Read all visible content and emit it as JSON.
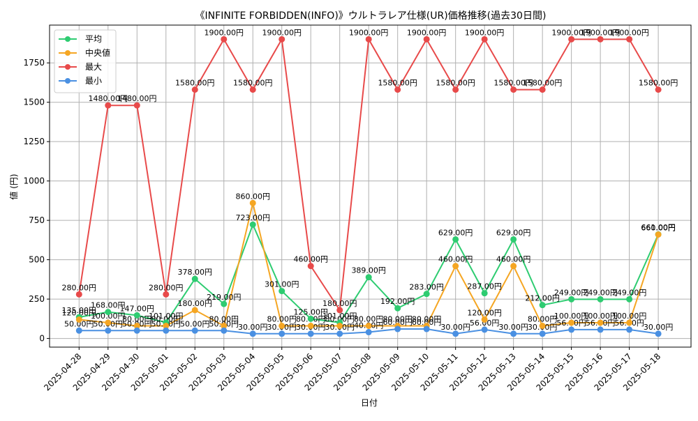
{
  "chart_data": {
    "type": "line",
    "title": "《INFINITE FORBIDDEN(INFO)》ウルトラレア仕様(UR)価格推移(過去30日間)",
    "xlabel": "日付",
    "ylabel": "値 (円)",
    "ylim": [
      -55,
      1990
    ],
    "yticks": [
      0,
      250,
      500,
      750,
      1000,
      1250,
      1500,
      1750
    ],
    "grid": true,
    "legend_position": "upper-left",
    "value_suffix": "円",
    "categories": [
      "2025-04-28",
      "2025-04-29",
      "2025-04-30",
      "2025-05-01",
      "2025-05-02",
      "2025-05-03",
      "2025-05-04",
      "2025-05-05",
      "2025-05-06",
      "2025-05-07",
      "2025-05-08",
      "2025-05-09",
      "2025-05-10",
      "2025-05-11",
      "2025-05-12",
      "2025-05-13",
      "2025-05-14",
      "2025-05-15",
      "2025-05-16",
      "2025-05-17",
      "2025-05-18"
    ],
    "series": [
      {
        "name": "平均",
        "color": "#2ecc71",
        "values": [
          135,
          168,
          147,
          101,
          378,
          219,
          723,
          301,
          125,
          101,
          389,
          192,
          283,
          629,
          287,
          629,
          212,
          249,
          249,
          249,
          661
        ]
      },
      {
        "name": "中央値",
        "color": "#f5a623",
        "values": [
          120,
          100,
          80,
          80,
          180,
          80,
          860,
          80,
          80,
          80,
          80,
          80,
          80,
          460,
          120,
          460,
          80,
          100,
          100,
          100,
          660
        ]
      },
      {
        "name": "最大",
        "color": "#e84a4a",
        "values": [
          280,
          1480,
          1480,
          280,
          1580,
          1900,
          1580,
          1900,
          460,
          180,
          1900,
          1580,
          1900,
          1580,
          1900,
          1580,
          1580,
          1900,
          1900,
          1900,
          1580
        ]
      },
      {
        "name": "最小",
        "color": "#4a90e2",
        "values": [
          50,
          50,
          50,
          50,
          50,
          50,
          30,
          30,
          30,
          30,
          40,
          60,
          60,
          30,
          56,
          30,
          30,
          56,
          56,
          56,
          30
        ]
      }
    ]
  }
}
